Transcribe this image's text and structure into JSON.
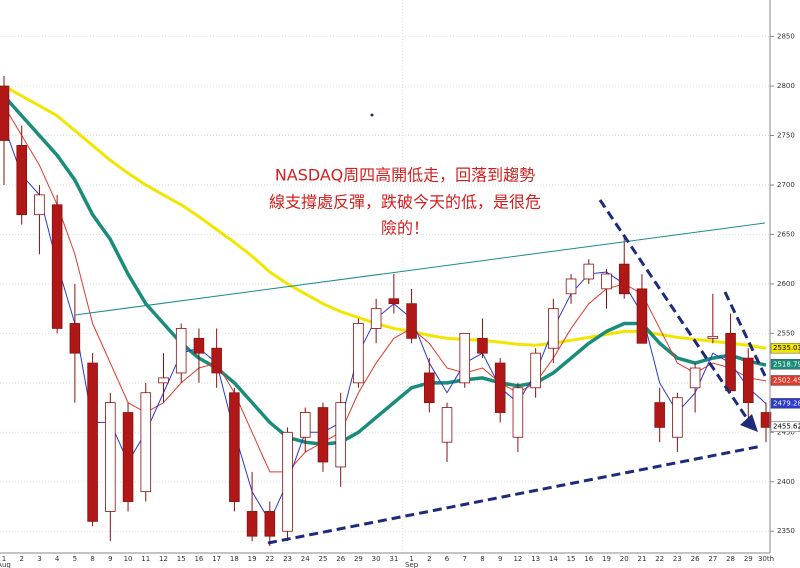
{
  "chart_data": {
    "type": "candlestick",
    "annotation": [
      "NASDAQ周四高開低走，回落到趨勢",
      "線支撐處反彈，跌破今天的低，是很危",
      "險的！"
    ],
    "categories": [
      "1",
      "2",
      "3",
      "4",
      "5",
      "8",
      "9",
      "10",
      "11",
      "12",
      "15",
      "16",
      "17",
      "18",
      "19",
      "22",
      "23",
      "24",
      "25",
      "26",
      "29",
      "30",
      "31",
      "1",
      "2",
      "6",
      "7",
      "8",
      "9",
      "12",
      "13",
      "14",
      "15",
      "16",
      "19",
      "20",
      "21",
      "22",
      "23",
      "26",
      "27",
      "28",
      "29",
      "30th"
    ],
    "month_labels": [
      "Aug",
      null,
      null,
      null,
      null,
      null,
      null,
      null,
      null,
      null,
      null,
      null,
      null,
      null,
      null,
      null,
      null,
      null,
      null,
      null,
      null,
      null,
      null,
      "Sep",
      null,
      null,
      null,
      null,
      null,
      null,
      null,
      null,
      null,
      null,
      null,
      null,
      null,
      null,
      null,
      null,
      null,
      null,
      null,
      null
    ],
    "open": [
      2800,
      2740,
      2670,
      2680,
      2560,
      2520,
      2370,
      2470,
      2390,
      2500,
      2510,
      2545,
      2535,
      2490,
      2370,
      2370,
      2350,
      2445,
      2475,
      2415,
      2500,
      2555,
      2585,
      2580,
      2510,
      2440,
      2500,
      2545,
      2520,
      2445,
      2495,
      2535,
      2590,
      2605,
      2595,
      2620,
      2595,
      2480,
      2445,
      2495,
      2545,
      2550,
      2525,
      2470
    ],
    "high": [
      2810,
      2760,
      2700,
      2690,
      2600,
      2530,
      2490,
      2480,
      2500,
      2530,
      2560,
      2555,
      2555,
      2495,
      2410,
      2380,
      2455,
      2475,
      2480,
      2490,
      2565,
      2585,
      2610,
      2595,
      2525,
      2480,
      2550,
      2565,
      2525,
      2500,
      2535,
      2585,
      2610,
      2625,
      2615,
      2650,
      2610,
      2495,
      2490,
      2520,
      2590,
      2570,
      2535,
      2480
    ],
    "low": [
      2700,
      2660,
      2630,
      2550,
      2480,
      2355,
      2340,
      2370,
      2380,
      2480,
      2500,
      2500,
      2495,
      2370,
      2340,
      2335,
      2340,
      2430,
      2410,
      2395,
      2495,
      2540,
      2570,
      2540,
      2470,
      2420,
      2495,
      2525,
      2460,
      2430,
      2485,
      2520,
      2580,
      2600,
      2575,
      2585,
      2540,
      2440,
      2430,
      2470,
      2540,
      2490,
      2460,
      2440
    ],
    "close": [
      2745,
      2670,
      2690,
      2555,
      2530,
      2360,
      2480,
      2380,
      2490,
      2505,
      2555,
      2530,
      2510,
      2380,
      2345,
      2345,
      2450,
      2470,
      2420,
      2480,
      2560,
      2575,
      2580,
      2545,
      2480,
      2475,
      2550,
      2530,
      2470,
      2495,
      2530,
      2575,
      2605,
      2620,
      2610,
      2590,
      2540,
      2455,
      2485,
      2515,
      2547,
      2492,
      2480,
      2455
    ],
    "lines": [
      {
        "color": "#f2e600",
        "width": 3,
        "values": [
          2800,
          2790,
          2780,
          2770,
          2755,
          2740,
          2725,
          2712,
          2700,
          2690,
          2680,
          2668,
          2655,
          2642,
          2628,
          2612,
          2600,
          2590,
          2580,
          2572,
          2566,
          2560,
          2555,
          2552,
          2548,
          2545,
          2544,
          2543,
          2541,
          2539,
          2538,
          2540,
          2543,
          2546,
          2549,
          2552,
          2552,
          2549,
          2546,
          2544,
          2542,
          2540,
          2538,
          2535
        ]
      },
      {
        "color": "#1a8c7a",
        "width": 3.5,
        "values": [
          2790,
          2770,
          2750,
          2730,
          2705,
          2670,
          2645,
          2610,
          2580,
          2560,
          2540,
          2525,
          2515,
          2500,
          2480,
          2460,
          2445,
          2440,
          2438,
          2440,
          2450,
          2465,
          2480,
          2495,
          2500,
          2500,
          2503,
          2505,
          2500,
          2497,
          2500,
          2510,
          2525,
          2540,
          2552,
          2560,
          2560,
          2540,
          2525,
          2520,
          2525,
          2528,
          2522,
          2518
        ]
      },
      {
        "color": "#e03a2a",
        "width": 1,
        "values": [
          2780,
          2750,
          2720,
          2680,
          2630,
          2560,
          2520,
          2480,
          2470,
          2480,
          2500,
          2515,
          2520,
          2490,
          2450,
          2410,
          2410,
          2430,
          2440,
          2450,
          2490,
          2520,
          2545,
          2555,
          2540,
          2515,
          2510,
          2515,
          2500,
          2490,
          2500,
          2525,
          2555,
          2580,
          2595,
          2600,
          2590,
          2555,
          2520,
          2510,
          2520,
          2515,
          2505,
          2502
        ]
      },
      {
        "color": "#2a3ad0",
        "width": 1,
        "values": [
          2760,
          2710,
          2690,
          2620,
          2560,
          2460,
          2460,
          2420,
          2450,
          2490,
          2530,
          2535,
          2520,
          2450,
          2390,
          2360,
          2400,
          2450,
          2450,
          2460,
          2530,
          2565,
          2580,
          2565,
          2520,
          2490,
          2520,
          2530,
          2495,
          2480,
          2510,
          2555,
          2590,
          2610,
          2612,
          2600,
          2570,
          2500,
          2470,
          2490,
          2530,
          2520,
          2495,
          2479
        ]
      }
    ],
    "price_tags": [
      {
        "value": 2535.03,
        "color": "#f2e600"
      },
      {
        "value": 2518.79,
        "color": "#1a8c7a"
      },
      {
        "value": 2502.45,
        "color": "#e03a2a"
      },
      {
        "value": 2479.28,
        "color": "#2a3ad0"
      },
      {
        "value": 2455.62,
        "color": "#ffffff"
      }
    ],
    "up_color": "#ffffff",
    "down_color": "#b01818",
    "edge_color": "#8a1010",
    "ylim": [
      2328,
      2887
    ],
    "yticks": [
      2350,
      2400,
      2450,
      2500,
      2550,
      2600,
      2650,
      2700,
      2750,
      2800,
      2850
    ],
    "grid": true
  }
}
